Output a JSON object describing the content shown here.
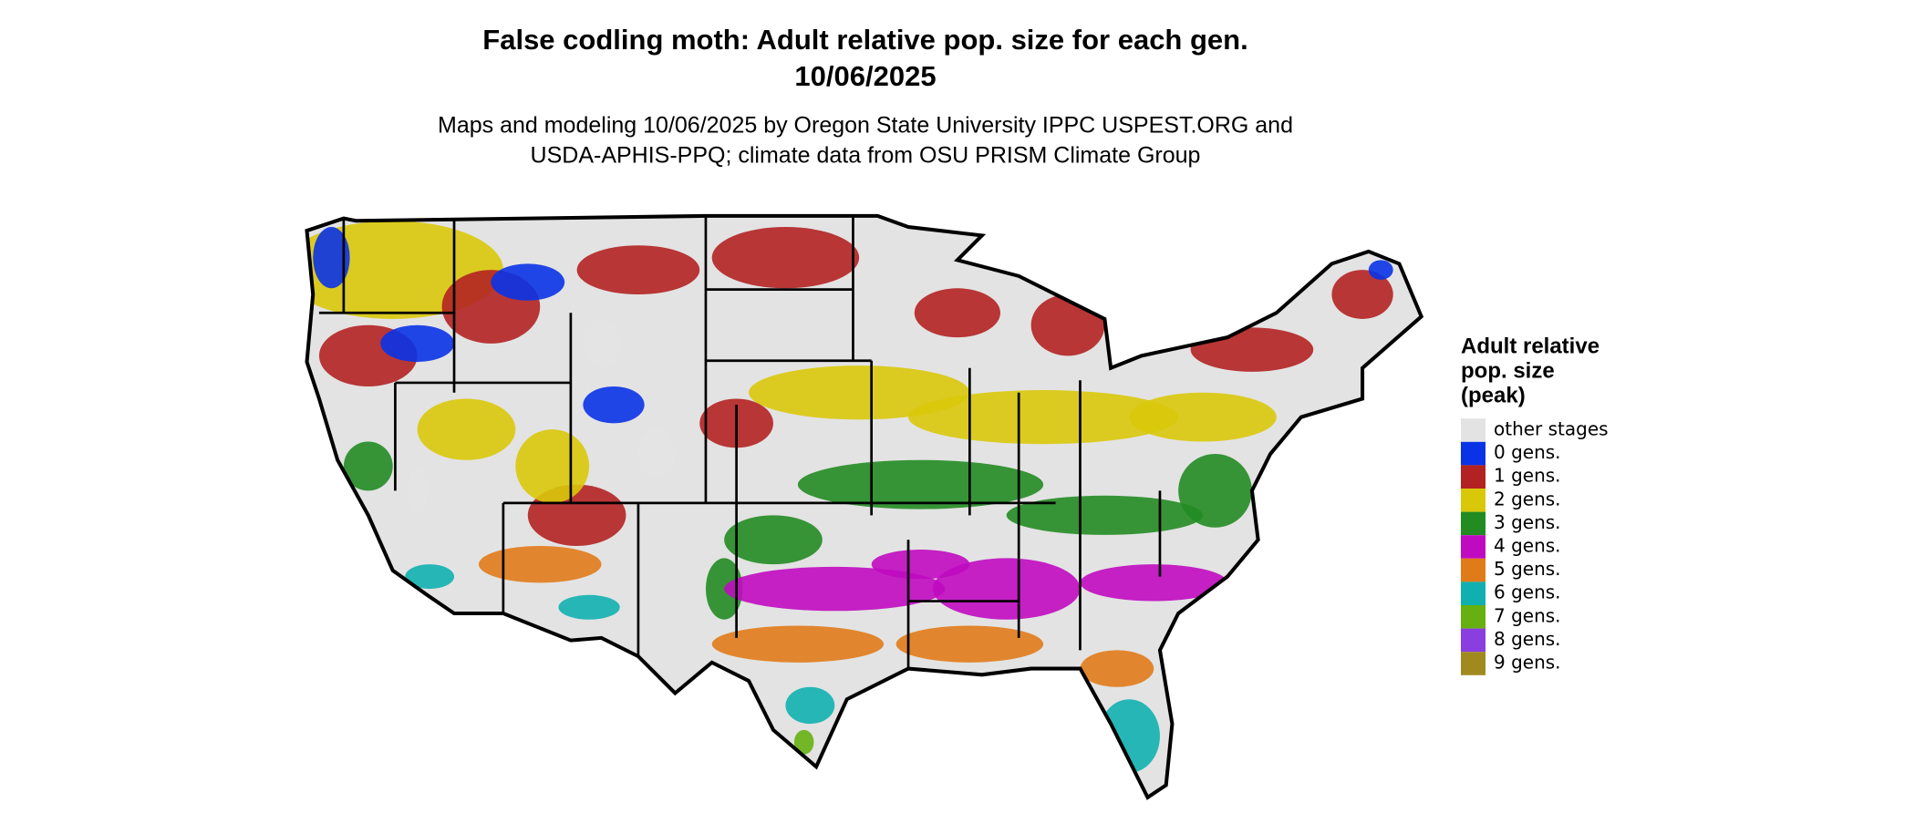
{
  "title": [
    "False codling moth: Adult relative pop. size for each gen.",
    "10/06/2025"
  ],
  "subtitle": [
    "Maps and modeling 10/06/2025 by Oregon State University IPPC USPEST.ORG and",
    "USDA-APHIS-PPQ; climate data from OSU PRISM Climate Group"
  ],
  "legend": {
    "title": [
      "Adult relative",
      "pop. size",
      "(peak)"
    ],
    "items": [
      {
        "label": "other stages",
        "color": "#e3e3e3"
      },
      {
        "label": "0 gens.",
        "color": "#0a33e6"
      },
      {
        "label": "1 gens.",
        "color": "#b22222"
      },
      {
        "label": "2 gens.",
        "color": "#d9c80a"
      },
      {
        "label": "3 gens.",
        "color": "#228b22"
      },
      {
        "label": "4 gens.",
        "color": "#c00ac0"
      },
      {
        "label": "5 gens.",
        "color": "#e07b1a"
      },
      {
        "label": "6 gens.",
        "color": "#11b0b0"
      },
      {
        "label": "7 gens.",
        "color": "#66b011"
      },
      {
        "label": "8 gens.",
        "color": "#8a3ee0"
      },
      {
        "label": "9 gens.",
        "color": "#a08a20"
      }
    ]
  }
}
